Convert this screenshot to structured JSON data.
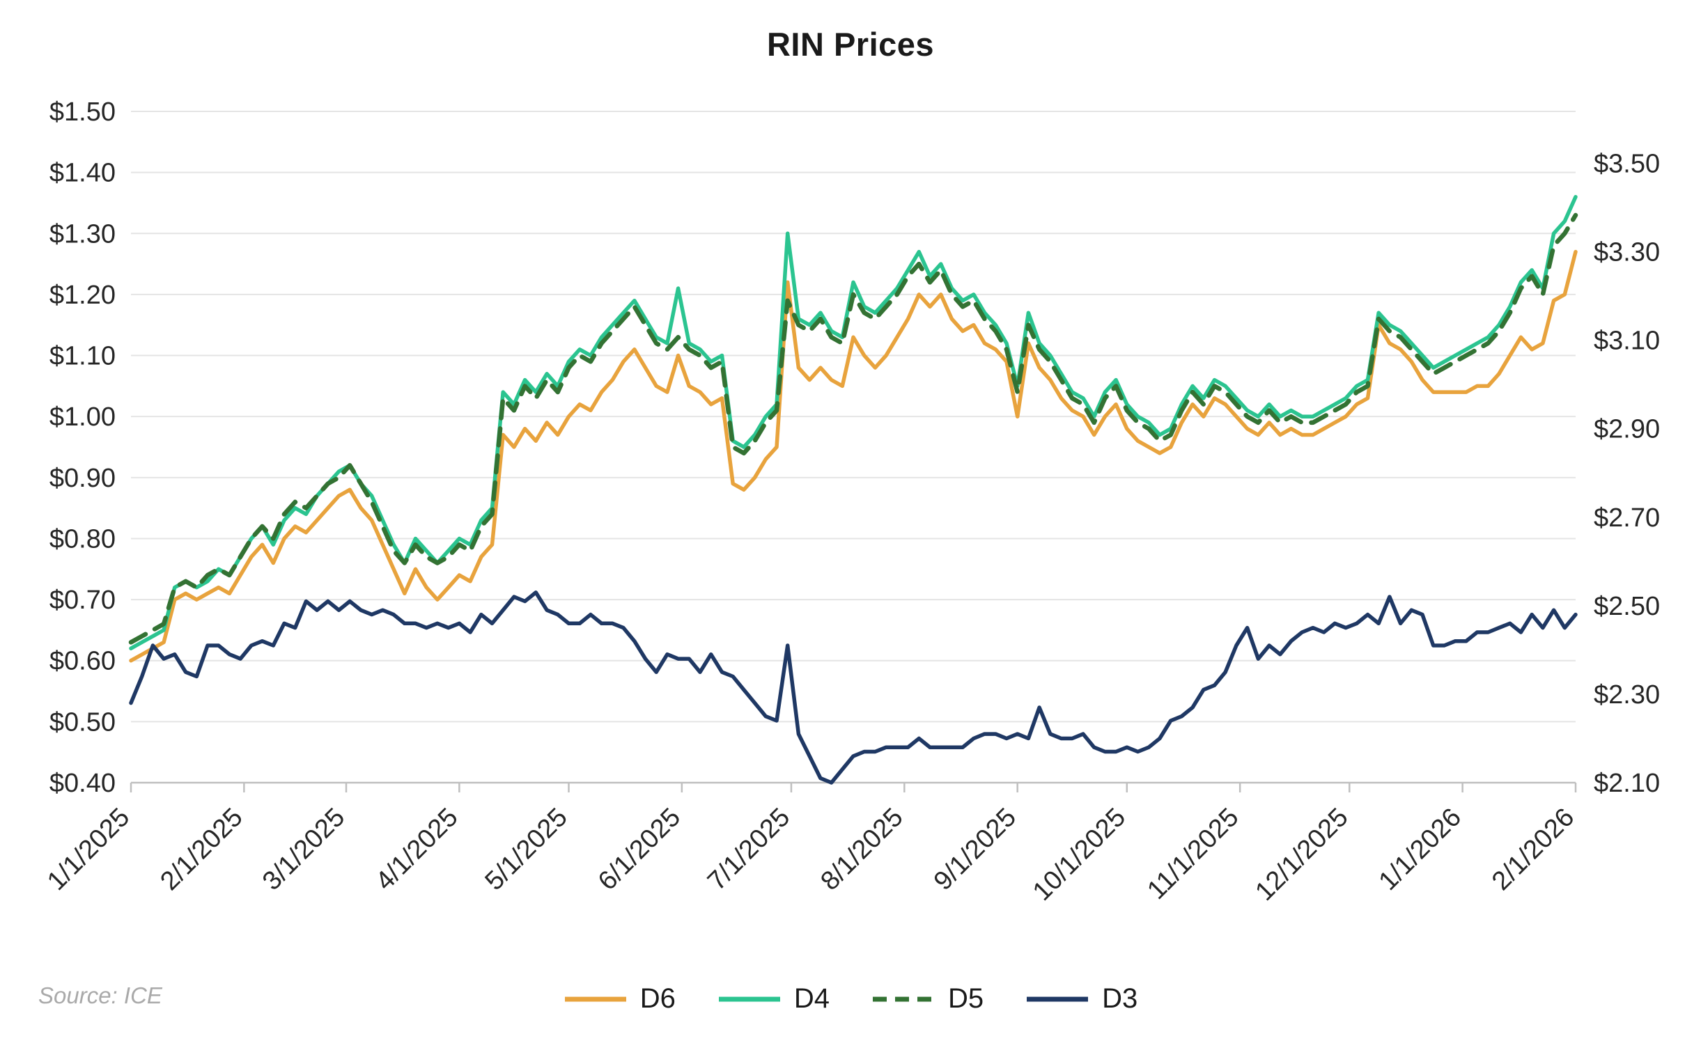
{
  "chart_data": {
    "type": "line",
    "title": "RIN Prices",
    "source_text": "Source: ICE",
    "grid": "horizontal",
    "legend_position": "bottom",
    "x_axis": {
      "max_day": 396,
      "day_step": 3,
      "ticks": [
        {
          "day": 0,
          "label": "1/1/2025"
        },
        {
          "day": 31,
          "label": "2/1/2025"
        },
        {
          "day": 59,
          "label": "3/1/2025"
        },
        {
          "day": 90,
          "label": "4/1/2025"
        },
        {
          "day": 120,
          "label": "5/1/2025"
        },
        {
          "day": 151,
          "label": "6/1/2025"
        },
        {
          "day": 181,
          "label": "7/1/2025"
        },
        {
          "day": 212,
          "label": "8/1/2025"
        },
        {
          "day": 243,
          "label": "9/1/2025"
        },
        {
          "day": 273,
          "label": "10/1/2025"
        },
        {
          "day": 304,
          "label": "11/1/2025"
        },
        {
          "day": 334,
          "label": "12/1/2025"
        },
        {
          "day": 365,
          "label": "1/1/2026"
        },
        {
          "day": 396,
          "label": "2/1/2026"
        }
      ]
    },
    "left_axis": {
      "min": 0.4,
      "max": 1.5,
      "tick_values": [
        0.4,
        0.5,
        0.6,
        0.7,
        0.8,
        0.9,
        1.0,
        1.1,
        1.2,
        1.3,
        1.4,
        1.5
      ],
      "tick_labels": [
        "$0.40",
        "$0.50",
        "$0.60",
        "$0.70",
        "$0.80",
        "$0.90",
        "$1.00",
        "$1.10",
        "$1.20",
        "$1.30",
        "$1.40",
        "$1.50"
      ]
    },
    "right_axis": {
      "min": 2.1,
      "max": 3.5,
      "left_min": 0.4,
      "left_max": 1.415,
      "tick_values": [
        2.1,
        2.3,
        2.5,
        2.7,
        2.9,
        3.1,
        3.3,
        3.5
      ],
      "tick_labels": [
        "$2.10",
        "$2.30",
        "$2.50",
        "$2.70",
        "$2.90",
        "$3.10",
        "$3.30",
        "$3.50"
      ]
    },
    "colors": {
      "d6": "#E8A33D",
      "d4": "#2BC490",
      "d5": "#337233",
      "d3": "#1F3864",
      "gridline": "#E4E4E4",
      "axis": "#BFBFBF",
      "text": "#262626"
    },
    "series": [
      {
        "name": "D6",
        "color": "#E8A33D",
        "style": "solid",
        "axis": "left",
        "values": [
          0.6,
          0.61,
          0.62,
          0.63,
          0.7,
          0.71,
          0.7,
          0.71,
          0.72,
          0.71,
          0.74,
          0.77,
          0.79,
          0.76,
          0.8,
          0.82,
          0.81,
          0.83,
          0.85,
          0.87,
          0.88,
          0.85,
          0.83,
          0.79,
          0.75,
          0.71,
          0.75,
          0.72,
          0.7,
          0.72,
          0.74,
          0.73,
          0.77,
          0.79,
          0.97,
          0.95,
          0.98,
          0.96,
          0.99,
          0.97,
          1.0,
          1.02,
          1.01,
          1.04,
          1.06,
          1.09,
          1.11,
          1.08,
          1.05,
          1.04,
          1.1,
          1.05,
          1.04,
          1.02,
          1.03,
          0.89,
          0.88,
          0.9,
          0.93,
          0.95,
          1.22,
          1.08,
          1.06,
          1.08,
          1.06,
          1.05,
          1.13,
          1.1,
          1.08,
          1.1,
          1.13,
          1.16,
          1.2,
          1.18,
          1.2,
          1.16,
          1.14,
          1.15,
          1.12,
          1.11,
          1.09,
          1.0,
          1.12,
          1.08,
          1.06,
          1.03,
          1.01,
          1.0,
          0.97,
          1.0,
          1.02,
          0.98,
          0.96,
          0.95,
          0.94,
          0.95,
          0.99,
          1.02,
          1.0,
          1.03,
          1.02,
          1.0,
          0.98,
          0.97,
          0.99,
          0.97,
          0.98,
          0.97,
          0.97,
          0.98,
          0.99,
          1.0,
          1.02,
          1.03,
          1.15,
          1.12,
          1.11,
          1.09,
          1.06,
          1.04,
          1.04,
          1.04,
          1.04,
          1.05,
          1.05,
          1.07,
          1.1,
          1.13,
          1.11,
          1.12,
          1.19,
          1.2,
          1.27
        ]
      },
      {
        "name": "D4",
        "color": "#2BC490",
        "style": "solid",
        "axis": "left",
        "values": [
          0.62,
          0.63,
          0.64,
          0.65,
          0.72,
          0.73,
          0.72,
          0.73,
          0.75,
          0.74,
          0.77,
          0.8,
          0.82,
          0.79,
          0.83,
          0.85,
          0.84,
          0.87,
          0.89,
          0.91,
          0.92,
          0.89,
          0.87,
          0.83,
          0.79,
          0.76,
          0.8,
          0.78,
          0.76,
          0.78,
          0.8,
          0.79,
          0.83,
          0.85,
          1.04,
          1.02,
          1.06,
          1.04,
          1.07,
          1.05,
          1.09,
          1.11,
          1.1,
          1.13,
          1.15,
          1.17,
          1.19,
          1.16,
          1.13,
          1.12,
          1.21,
          1.12,
          1.11,
          1.09,
          1.1,
          0.96,
          0.95,
          0.97,
          1.0,
          1.02,
          1.3,
          1.16,
          1.15,
          1.17,
          1.14,
          1.13,
          1.22,
          1.18,
          1.17,
          1.19,
          1.21,
          1.24,
          1.27,
          1.23,
          1.25,
          1.21,
          1.19,
          1.2,
          1.17,
          1.15,
          1.12,
          1.05,
          1.17,
          1.12,
          1.1,
          1.07,
          1.04,
          1.03,
          1.0,
          1.04,
          1.06,
          1.02,
          1.0,
          0.99,
          0.97,
          0.98,
          1.02,
          1.05,
          1.03,
          1.06,
          1.05,
          1.03,
          1.01,
          1.0,
          1.02,
          1.0,
          1.01,
          1.0,
          1.0,
          1.01,
          1.02,
          1.03,
          1.05,
          1.06,
          1.17,
          1.15,
          1.14,
          1.12,
          1.1,
          1.08,
          1.09,
          1.1,
          1.11,
          1.12,
          1.13,
          1.15,
          1.18,
          1.22,
          1.24,
          1.21,
          1.3,
          1.32,
          1.36
        ]
      },
      {
        "name": "D5",
        "color": "#337233",
        "style": "dashed",
        "dash": "24 15",
        "axis": "left",
        "values": [
          0.63,
          0.64,
          0.65,
          0.66,
          0.72,
          0.73,
          0.72,
          0.74,
          0.75,
          0.74,
          0.77,
          0.8,
          0.82,
          0.8,
          0.84,
          0.86,
          0.85,
          0.87,
          0.89,
          0.9,
          0.92,
          0.89,
          0.86,
          0.82,
          0.78,
          0.76,
          0.79,
          0.77,
          0.76,
          0.77,
          0.79,
          0.78,
          0.82,
          0.84,
          1.03,
          1.01,
          1.05,
          1.03,
          1.06,
          1.04,
          1.08,
          1.1,
          1.09,
          1.12,
          1.14,
          1.16,
          1.18,
          1.15,
          1.12,
          1.11,
          1.13,
          1.11,
          1.1,
          1.08,
          1.09,
          0.95,
          0.94,
          0.96,
          0.99,
          1.01,
          1.19,
          1.15,
          1.14,
          1.16,
          1.13,
          1.12,
          1.2,
          1.17,
          1.16,
          1.18,
          1.2,
          1.23,
          1.25,
          1.22,
          1.24,
          1.2,
          1.18,
          1.19,
          1.16,
          1.14,
          1.11,
          1.04,
          1.15,
          1.11,
          1.09,
          1.06,
          1.03,
          1.02,
          0.99,
          1.03,
          1.05,
          1.01,
          0.99,
          0.98,
          0.96,
          0.97,
          1.01,
          1.04,
          1.02,
          1.05,
          1.04,
          1.02,
          1.0,
          0.99,
          1.01,
          0.99,
          1.0,
          0.99,
          0.99,
          1.0,
          1.01,
          1.02,
          1.04,
          1.05,
          1.16,
          1.14,
          1.13,
          1.11,
          1.09,
          1.07,
          1.08,
          1.09,
          1.1,
          1.11,
          1.12,
          1.14,
          1.17,
          1.21,
          1.23,
          1.2,
          1.28,
          1.3,
          1.33
        ]
      },
      {
        "name": "D3",
        "color": "#1F3864",
        "style": "solid",
        "axis": "right",
        "values": [
          2.28,
          2.34,
          2.41,
          2.38,
          2.39,
          2.35,
          2.34,
          2.41,
          2.41,
          2.39,
          2.38,
          2.41,
          2.42,
          2.41,
          2.46,
          2.45,
          2.51,
          2.49,
          2.51,
          2.49,
          2.51,
          2.49,
          2.48,
          2.49,
          2.48,
          2.46,
          2.46,
          2.45,
          2.46,
          2.45,
          2.46,
          2.44,
          2.48,
          2.46,
          2.49,
          2.52,
          2.51,
          2.53,
          2.49,
          2.48,
          2.46,
          2.46,
          2.48,
          2.46,
          2.46,
          2.45,
          2.42,
          2.38,
          2.35,
          2.39,
          2.38,
          2.38,
          2.35,
          2.39,
          2.35,
          2.34,
          2.31,
          2.28,
          2.25,
          2.24,
          2.41,
          2.21,
          2.16,
          2.11,
          2.1,
          2.13,
          2.16,
          2.17,
          2.17,
          2.18,
          2.18,
          2.18,
          2.2,
          2.18,
          2.18,
          2.18,
          2.18,
          2.2,
          2.21,
          2.21,
          2.2,
          2.21,
          2.2,
          2.27,
          2.21,
          2.2,
          2.2,
          2.21,
          2.18,
          2.17,
          2.17,
          2.18,
          2.17,
          2.18,
          2.2,
          2.24,
          2.25,
          2.27,
          2.31,
          2.32,
          2.35,
          2.41,
          2.45,
          2.38,
          2.41,
          2.39,
          2.42,
          2.44,
          2.45,
          2.44,
          2.46,
          2.45,
          2.46,
          2.48,
          2.46,
          2.52,
          2.46,
          2.49,
          2.48,
          2.41,
          2.41,
          2.42,
          2.42,
          2.44,
          2.44,
          2.45,
          2.46,
          2.44,
          2.48,
          2.45,
          2.49,
          2.45,
          2.48
        ]
      }
    ]
  }
}
